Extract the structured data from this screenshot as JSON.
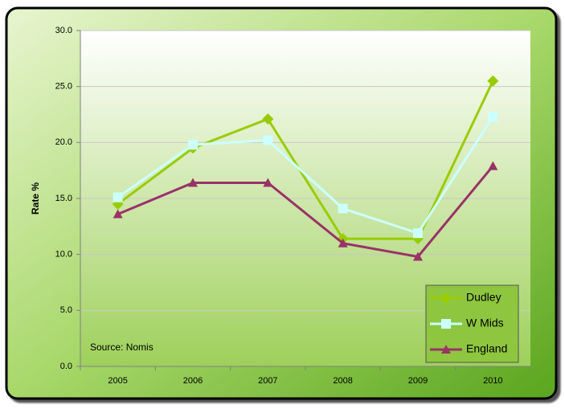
{
  "chart_data": {
    "type": "line",
    "categories": [
      "2005",
      "2006",
      "2007",
      "2008",
      "2009",
      "2010"
    ],
    "series": [
      {
        "name": "Dudley",
        "color": "#99cc00",
        "marker": "diamond",
        "values": [
          14.5,
          19.5,
          22.1,
          11.4,
          11.4,
          25.5
        ]
      },
      {
        "name": "W Mids",
        "color": "#ccffff",
        "marker": "square",
        "values": [
          15.1,
          19.8,
          20.2,
          14.1,
          11.9,
          22.3
        ]
      },
      {
        "name": "England",
        "color": "#993366",
        "marker": "triangle",
        "values": [
          13.6,
          16.4,
          16.4,
          11.0,
          9.8,
          17.9
        ]
      }
    ],
    "ylabel": "Rate %",
    "annotation": "Source: Nomis",
    "ylim": [
      0,
      30
    ],
    "yticks": [
      {
        "value": 0,
        "label": "0.0"
      },
      {
        "value": 5,
        "label": "5.0"
      },
      {
        "value": 10,
        "label": "10.0"
      },
      {
        "value": 15,
        "label": "15.0"
      },
      {
        "value": 20,
        "label": "20.0"
      },
      {
        "value": 25,
        "label": "25.0"
      },
      {
        "value": 30,
        "label": "30.0"
      }
    ],
    "grid": true,
    "legend": "lower-right"
  }
}
